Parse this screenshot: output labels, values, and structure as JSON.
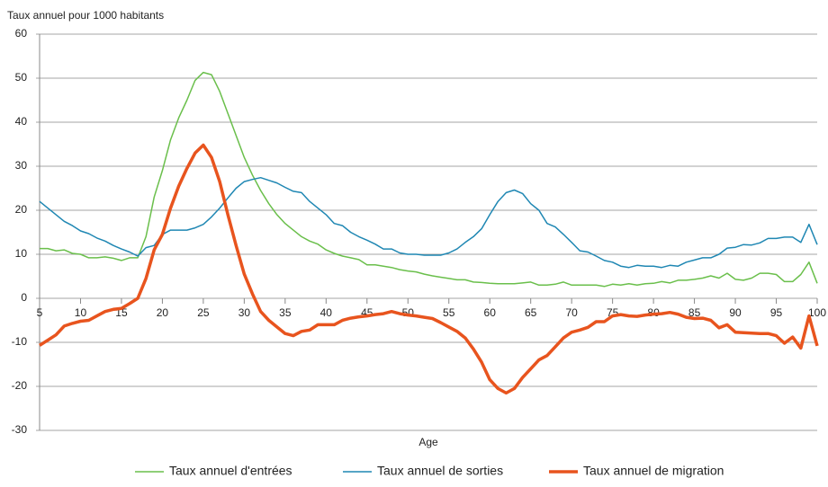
{
  "chart_data": {
    "type": "line",
    "y_axis_title": "Taux annuel pour 1000 habitants",
    "x_axis_title": "Age",
    "x": [
      5,
      6,
      7,
      8,
      9,
      10,
      11,
      12,
      13,
      14,
      15,
      16,
      17,
      18,
      19,
      20,
      21,
      22,
      23,
      24,
      25,
      26,
      27,
      28,
      29,
      30,
      31,
      32,
      33,
      34,
      35,
      36,
      37,
      38,
      39,
      40,
      41,
      42,
      43,
      44,
      45,
      46,
      47,
      48,
      49,
      50,
      51,
      52,
      53,
      54,
      55,
      56,
      57,
      58,
      59,
      60,
      61,
      62,
      63,
      64,
      65,
      66,
      67,
      68,
      69,
      70,
      71,
      72,
      73,
      74,
      75,
      76,
      77,
      78,
      79,
      80,
      81,
      82,
      83,
      84,
      85,
      86,
      87,
      88,
      89,
      90,
      91,
      92,
      93,
      94,
      95,
      96,
      97,
      98,
      99,
      100
    ],
    "series": [
      {
        "name": "Taux annuel d'entrées",
        "color": "#6abf4b",
        "width": 1.5,
        "values": [
          11.3,
          11.3,
          10.8,
          11,
          10.2,
          10,
          9.2,
          9.2,
          9.4,
          9.1,
          8.6,
          9.2,
          9.2,
          14,
          23,
          29,
          36,
          41,
          45,
          49.5,
          51.3,
          50.8,
          47,
          42,
          37,
          32,
          28,
          24.5,
          21.5,
          19,
          17,
          15.5,
          14,
          13,
          12.3,
          11,
          10.2,
          9.6,
          9.2,
          8.8,
          7.6,
          7.6,
          7.3,
          7,
          6.5,
          6.2,
          6,
          5.5,
          5.1,
          4.8,
          4.5,
          4.2,
          4.2,
          3.7,
          3.6,
          3.4,
          3.3,
          3.3,
          3.3,
          3.5,
          3.7,
          3,
          3,
          3.2,
          3.7,
          3,
          3,
          3,
          3,
          2.7,
          3.2,
          3,
          3.3,
          3,
          3.3,
          3.4,
          3.8,
          3.5,
          4.1,
          4.1,
          4.3,
          4.6,
          5.1,
          4.6,
          5.7,
          4.3,
          4.1,
          4.6,
          5.7,
          5.7,
          5.4,
          3.8,
          3.8,
          5.4,
          8.2,
          3.4
        ]
      },
      {
        "name": "Taux annuel de sorties",
        "color": "#1f87b3",
        "width": 1.5,
        "values": [
          22,
          20.5,
          19,
          17.5,
          16.5,
          15.3,
          14.7,
          13.7,
          13,
          12,
          11.2,
          10.5,
          9.6,
          11.5,
          12,
          14.5,
          15.5,
          15.5,
          15.5,
          16,
          16.8,
          18.5,
          20.5,
          22.8,
          25,
          26.5,
          27,
          27.4,
          26.8,
          26.2,
          25.2,
          24.3,
          24,
          22,
          20.5,
          19,
          17,
          16.5,
          15,
          14,
          13.2,
          12.3,
          11.2,
          11.2,
          10.3,
          10,
          10,
          9.8,
          9.8,
          9.8,
          10.3,
          11.2,
          12.7,
          14,
          15.8,
          19,
          22,
          24,
          24.6,
          23.8,
          21.5,
          20,
          17,
          16.2,
          14.5,
          12.7,
          10.8,
          10.5,
          9.6,
          8.6,
          8.2,
          7.3,
          7,
          7.5,
          7.3,
          7.3,
          7,
          7.5,
          7.3,
          8.2,
          8.7,
          9.2,
          9.2,
          10,
          11.4,
          11.6,
          12.2,
          12.1,
          12.6,
          13.6,
          13.6,
          13.9,
          13.9,
          12.7,
          16.8,
          12.2
        ]
      },
      {
        "name": "Taux annuel de migration",
        "color": "#e8541e",
        "width": 3.5,
        "values": [
          -10.7,
          -9.5,
          -8.3,
          -6.3,
          -5.7,
          -5.2,
          -5,
          -4,
          -3,
          -2.5,
          -2.3,
          -1.2,
          0,
          4.5,
          11,
          14.5,
          20.5,
          25.5,
          29.5,
          33,
          34.8,
          32,
          26.5,
          19,
          12,
          5.5,
          1,
          -3,
          -5,
          -6.5,
          -8,
          -8.5,
          -7.5,
          -7.2,
          -6,
          -6,
          -6,
          -5,
          -4.5,
          -4.2,
          -4,
          -3.7,
          -3.5,
          -3,
          -3.5,
          -3.8,
          -4,
          -4.3,
          -4.6,
          -5.5,
          -6.5,
          -7.5,
          -9,
          -11.5,
          -14.5,
          -18.5,
          -20.5,
          -21.5,
          -20.5,
          -18,
          -16,
          -14,
          -13,
          -11,
          -9,
          -7.7,
          -7.2,
          -6.6,
          -5.3,
          -5.3,
          -4,
          -3.7,
          -4,
          -4.1,
          -3.8,
          -3.6,
          -3.5,
          -3.2,
          -3.6,
          -4.3,
          -4.6,
          -4.5,
          -5,
          -6.7,
          -6,
          -7.7,
          -7.8,
          -7.9,
          -8,
          -8,
          -8.5,
          -10.2,
          -8.8,
          -11.3,
          -4,
          -10.8
        ]
      }
    ],
    "xlim": [
      5,
      100
    ],
    "xticks": [
      5,
      10,
      15,
      20,
      25,
      30,
      35,
      40,
      45,
      50,
      55,
      60,
      65,
      70,
      75,
      80,
      85,
      90,
      95,
      100
    ],
    "ylim": [
      -30,
      60
    ],
    "yticks": [
      -30,
      -20,
      -10,
      0,
      10,
      20,
      30,
      40,
      50,
      60
    ],
    "grid": true,
    "legend": "bottom"
  }
}
